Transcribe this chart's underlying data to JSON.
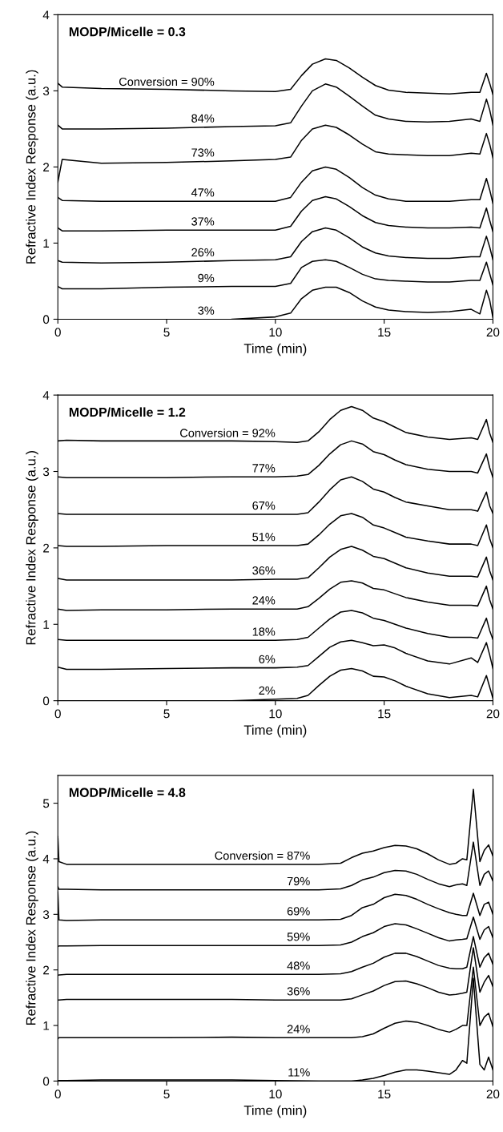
{
  "chart_data": [
    {
      "type": "line",
      "title": "MODP/Micelle = 0.3",
      "xlabel": "Time (min)",
      "ylabel": "Refractive Index Response (a.u.)",
      "xlim": [
        0,
        20
      ],
      "xticks": [
        0,
        5,
        10,
        15,
        20
      ],
      "ylim": [
        0,
        4
      ],
      "yticks": [
        0,
        1,
        2,
        3,
        4
      ],
      "grid": false,
      "legend": false,
      "marker": "none",
      "line_style": "solid",
      "x": [
        0,
        0.2,
        2,
        5,
        8,
        10,
        10.7,
        11.2,
        11.7,
        12.3,
        12.8,
        13.4,
        14,
        14.6,
        15.2,
        16,
        17,
        18,
        19,
        19.4,
        19.7,
        19.85,
        20
      ],
      "series": [
        {
          "name": "Conversion = 90%",
          "color": "#000000",
          "values": [
            3.1,
            3.05,
            3.03,
            3.02,
            3.0,
            2.99,
            3.02,
            3.2,
            3.35,
            3.42,
            3.4,
            3.3,
            3.18,
            3.07,
            3.01,
            2.98,
            2.97,
            2.96,
            2.98,
            2.98,
            3.23,
            3.1,
            2.95
          ]
        },
        {
          "name": "84%",
          "color": "#000000",
          "values": [
            2.55,
            2.5,
            2.5,
            2.51,
            2.53,
            2.54,
            2.58,
            2.8,
            3.0,
            3.09,
            3.05,
            2.93,
            2.8,
            2.68,
            2.63,
            2.6,
            2.59,
            2.6,
            2.63,
            2.6,
            2.89,
            2.75,
            2.55
          ]
        },
        {
          "name": "73%",
          "color": "#000000",
          "values": [
            1.8,
            2.1,
            2.05,
            2.06,
            2.08,
            2.1,
            2.13,
            2.35,
            2.5,
            2.55,
            2.52,
            2.42,
            2.3,
            2.2,
            2.17,
            2.16,
            2.15,
            2.15,
            2.18,
            2.17,
            2.44,
            2.3,
            2.12
          ]
        },
        {
          "name": "47%",
          "color": "#000000",
          "values": [
            1.6,
            1.56,
            1.55,
            1.55,
            1.55,
            1.55,
            1.6,
            1.8,
            1.95,
            2.0,
            1.97,
            1.86,
            1.73,
            1.63,
            1.58,
            1.55,
            1.55,
            1.55,
            1.57,
            1.57,
            1.85,
            1.7,
            1.52
          ]
        },
        {
          "name": "37%",
          "color": "#000000",
          "values": [
            1.2,
            1.16,
            1.16,
            1.17,
            1.17,
            1.17,
            1.22,
            1.42,
            1.56,
            1.61,
            1.58,
            1.48,
            1.36,
            1.27,
            1.23,
            1.21,
            1.2,
            1.2,
            1.21,
            1.2,
            1.46,
            1.3,
            1.15
          ]
        },
        {
          "name": "26%",
          "color": "#000000",
          "values": [
            0.77,
            0.75,
            0.74,
            0.75,
            0.77,
            0.78,
            0.82,
            1.02,
            1.15,
            1.2,
            1.17,
            1.07,
            0.95,
            0.87,
            0.83,
            0.81,
            0.8,
            0.8,
            0.82,
            0.82,
            1.09,
            0.95,
            0.78
          ]
        },
        {
          "name": "9%",
          "color": "#000000",
          "values": [
            0.43,
            0.4,
            0.4,
            0.42,
            0.43,
            0.43,
            0.47,
            0.68,
            0.76,
            0.78,
            0.76,
            0.68,
            0.59,
            0.53,
            0.51,
            0.5,
            0.49,
            0.49,
            0.51,
            0.51,
            0.75,
            0.6,
            0.45
          ]
        },
        {
          "name": "3%",
          "color": "#000000",
          "values": [
            null,
            null,
            null,
            null,
            0.0,
            0.03,
            0.08,
            0.27,
            0.38,
            0.42,
            0.42,
            0.35,
            0.24,
            0.16,
            0.12,
            0.1,
            0.09,
            0.1,
            0.13,
            0.07,
            0.38,
            0.25,
            0.02
          ]
        }
      ]
    },
    {
      "type": "line",
      "title": "MODP/Micelle = 1.2",
      "xlabel": "Time (min)",
      "ylabel": "Refractive Index Response (a.u.)",
      "xlim": [
        0,
        20
      ],
      "xticks": [
        0,
        5,
        10,
        15,
        20
      ],
      "ylim": [
        0,
        4
      ],
      "yticks": [
        0,
        1,
        2,
        3,
        4
      ],
      "grid": false,
      "legend": false,
      "marker": "none",
      "line_style": "solid",
      "x": [
        0,
        0.4,
        2,
        5,
        8,
        10,
        11,
        11.5,
        12,
        12.5,
        13,
        13.5,
        14,
        14.5,
        15,
        15.5,
        16,
        17,
        18,
        19,
        19.3,
        19.7,
        19.85,
        20
      ],
      "series": [
        {
          "name": "Conversion = 92%",
          "color": "#000000",
          "values": [
            3.4,
            3.41,
            3.4,
            3.4,
            3.4,
            3.39,
            3.38,
            3.4,
            3.52,
            3.68,
            3.8,
            3.85,
            3.8,
            3.7,
            3.65,
            3.58,
            3.51,
            3.45,
            3.42,
            3.44,
            3.42,
            3.68,
            3.5,
            3.38
          ]
        },
        {
          "name": "77%",
          "color": "#000000",
          "values": [
            2.93,
            2.92,
            2.92,
            2.92,
            2.93,
            2.93,
            2.94,
            2.96,
            3.08,
            3.23,
            3.35,
            3.4,
            3.36,
            3.26,
            3.22,
            3.15,
            3.09,
            3.03,
            3.0,
            3.0,
            2.98,
            3.23,
            3.05,
            2.92
          ]
        },
        {
          "name": "67%",
          "color": "#000000",
          "values": [
            2.45,
            2.44,
            2.44,
            2.44,
            2.44,
            2.44,
            2.44,
            2.46,
            2.6,
            2.76,
            2.89,
            2.93,
            2.87,
            2.77,
            2.73,
            2.66,
            2.6,
            2.55,
            2.5,
            2.5,
            2.48,
            2.73,
            2.55,
            2.45
          ]
        },
        {
          "name": "51%",
          "color": "#000000",
          "values": [
            2.03,
            2.02,
            2.02,
            2.03,
            2.03,
            2.03,
            2.03,
            2.05,
            2.17,
            2.31,
            2.42,
            2.45,
            2.4,
            2.3,
            2.26,
            2.2,
            2.14,
            2.09,
            2.05,
            2.05,
            2.03,
            2.3,
            2.12,
            2.0
          ]
        },
        {
          "name": "36%",
          "color": "#000000",
          "values": [
            1.6,
            1.58,
            1.58,
            1.58,
            1.58,
            1.59,
            1.59,
            1.61,
            1.74,
            1.88,
            1.98,
            2.02,
            1.97,
            1.89,
            1.86,
            1.8,
            1.74,
            1.67,
            1.63,
            1.63,
            1.62,
            1.88,
            1.7,
            1.58
          ]
        },
        {
          "name": "24%",
          "color": "#000000",
          "values": [
            1.2,
            1.18,
            1.19,
            1.19,
            1.2,
            1.2,
            1.2,
            1.23,
            1.34,
            1.46,
            1.55,
            1.57,
            1.54,
            1.47,
            1.45,
            1.4,
            1.35,
            1.29,
            1.25,
            1.25,
            1.24,
            1.5,
            1.32,
            1.2
          ]
        },
        {
          "name": "18%",
          "color": "#000000",
          "values": [
            0.8,
            0.79,
            0.79,
            0.79,
            0.79,
            0.79,
            0.8,
            0.83,
            0.95,
            1.07,
            1.16,
            1.18,
            1.15,
            1.08,
            1.05,
            1.0,
            0.95,
            0.88,
            0.83,
            0.83,
            0.82,
            1.08,
            0.92,
            0.8
          ]
        },
        {
          "name": "6%",
          "color": "#000000",
          "values": [
            0.44,
            0.41,
            0.41,
            0.42,
            0.43,
            0.43,
            0.44,
            0.46,
            0.58,
            0.7,
            0.77,
            0.79,
            0.76,
            0.72,
            0.73,
            0.69,
            0.62,
            0.52,
            0.48,
            0.56,
            0.5,
            0.76,
            0.6,
            0.42
          ]
        },
        {
          "name": "2%",
          "color": "#000000",
          "values": [
            null,
            null,
            null,
            null,
            0.0,
            0.02,
            0.03,
            0.07,
            0.2,
            0.32,
            0.4,
            0.42,
            0.39,
            0.32,
            0.31,
            0.26,
            0.19,
            0.09,
            0.04,
            0.07,
            0.05,
            0.33,
            0.18,
            0.03
          ]
        }
      ]
    },
    {
      "type": "line",
      "title": "MODP/Micelle = 4.8",
      "xlabel": "Time (min)",
      "ylabel": "Refractive Index Response (a.u.)",
      "xlim": [
        0,
        20
      ],
      "xticks": [
        0,
        5,
        10,
        15,
        20
      ],
      "ylim": [
        0,
        5.5
      ],
      "yticks": [
        0,
        1,
        2,
        3,
        4,
        5
      ],
      "grid": false,
      "legend": false,
      "marker": "none",
      "line_style": "solid",
      "x": [
        0,
        0.05,
        0.4,
        2,
        5,
        8,
        10,
        12,
        13,
        13.5,
        14,
        14.5,
        15,
        15.5,
        16,
        16.5,
        17,
        17.5,
        18,
        18.3,
        18.6,
        18.8,
        19.1,
        19.4,
        19.6,
        19.8,
        20
      ],
      "series": [
        {
          "name": "Conversion = 87%",
          "color": "#000000",
          "values": [
            4.4,
            3.95,
            3.9,
            3.9,
            3.9,
            3.9,
            3.9,
            3.9,
            3.92,
            4.02,
            4.1,
            4.14,
            4.2,
            4.24,
            4.23,
            4.18,
            4.09,
            3.98,
            3.9,
            3.92,
            4.0,
            3.98,
            5.25,
            3.95,
            4.15,
            4.25,
            4.05
          ]
        },
        {
          "name": "79%",
          "color": "#000000",
          "values": [
            3.5,
            3.45,
            3.45,
            3.44,
            3.44,
            3.44,
            3.44,
            3.44,
            3.46,
            3.52,
            3.62,
            3.67,
            3.75,
            3.79,
            3.78,
            3.72,
            3.63,
            3.55,
            3.5,
            3.53,
            3.55,
            3.52,
            4.3,
            3.52,
            3.72,
            3.78,
            3.6
          ]
        },
        {
          "name": "69%",
          "color": "#000000",
          "values": [
            3.4,
            2.9,
            2.89,
            2.9,
            2.9,
            2.9,
            2.9,
            2.9,
            2.91,
            2.98,
            3.12,
            3.18,
            3.3,
            3.36,
            3.34,
            3.27,
            3.18,
            3.1,
            3.03,
            3.0,
            2.98,
            2.98,
            3.38,
            2.98,
            3.18,
            3.22,
            3.0
          ]
        },
        {
          "name": "59%",
          "color": "#000000",
          "values": [
            2.42,
            2.43,
            2.43,
            2.44,
            2.44,
            2.44,
            2.44,
            2.44,
            2.45,
            2.5,
            2.6,
            2.67,
            2.78,
            2.83,
            2.81,
            2.74,
            2.66,
            2.58,
            2.52,
            2.54,
            2.55,
            2.56,
            2.95,
            2.55,
            2.72,
            2.78,
            2.58
          ]
        },
        {
          "name": "48%",
          "color": "#000000",
          "values": [
            1.9,
            1.91,
            1.92,
            1.92,
            1.92,
            1.92,
            1.92,
            1.92,
            1.93,
            1.97,
            2.05,
            2.12,
            2.23,
            2.3,
            2.3,
            2.24,
            2.16,
            2.08,
            2.03,
            2.02,
            2.02,
            2.05,
            2.6,
            2.05,
            2.22,
            2.3,
            2.1
          ]
        },
        {
          "name": "36%",
          "color": "#000000",
          "values": [
            1.46,
            1.46,
            1.47,
            1.47,
            1.47,
            1.47,
            1.46,
            1.46,
            1.46,
            1.48,
            1.55,
            1.62,
            1.72,
            1.79,
            1.8,
            1.75,
            1.68,
            1.6,
            1.55,
            1.56,
            1.58,
            1.6,
            2.4,
            1.6,
            1.78,
            1.9,
            1.7
          ]
        },
        {
          "name": "24%",
          "color": "#000000",
          "values": [
            0.76,
            0.78,
            0.78,
            0.78,
            0.78,
            0.79,
            0.78,
            0.78,
            0.78,
            0.78,
            0.8,
            0.85,
            0.95,
            1.04,
            1.08,
            1.06,
            1.0,
            0.93,
            0.88,
            0.93,
            1.0,
            1.0,
            2.05,
            1.0,
            1.15,
            1.22,
            0.98
          ]
        },
        {
          "name": "11%",
          "color": "#000000",
          "values": [
            0.01,
            0.01,
            0.01,
            0.02,
            0.02,
            0.02,
            0.01,
            0.0,
            0.0,
            0.0,
            0.02,
            0.05,
            0.1,
            0.16,
            0.2,
            0.2,
            0.18,
            0.15,
            0.12,
            0.2,
            0.37,
            0.32,
            1.85,
            0.3,
            0.2,
            0.43,
            0.2
          ]
        }
      ]
    }
  ]
}
